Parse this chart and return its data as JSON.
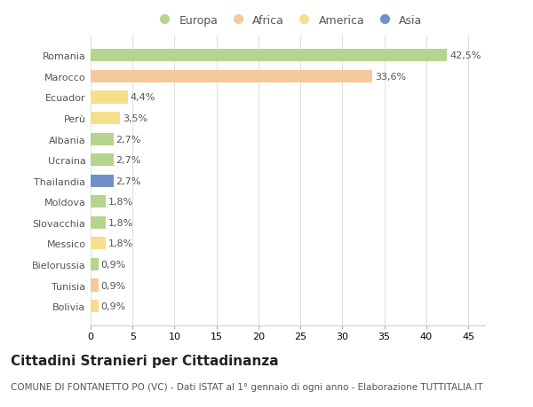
{
  "categories": [
    "Romania",
    "Marocco",
    "Ecuador",
    "Perù",
    "Albania",
    "Ucraina",
    "Thailandia",
    "Moldova",
    "Slovacchia",
    "Messico",
    "Bielorussia",
    "Tunisia",
    "Bolivia"
  ],
  "values": [
    42.5,
    33.6,
    4.4,
    3.5,
    2.7,
    2.7,
    2.7,
    1.8,
    1.8,
    1.8,
    0.9,
    0.9,
    0.9
  ],
  "labels": [
    "42,5%",
    "33,6%",
    "4,4%",
    "3,5%",
    "2,7%",
    "2,7%",
    "2,7%",
    "1,8%",
    "1,8%",
    "1,8%",
    "0,9%",
    "0,9%",
    "0,9%"
  ],
  "colors": [
    "#b5d48e",
    "#f5c99a",
    "#f5df8a",
    "#f5df8a",
    "#b5d48e",
    "#b5d48e",
    "#7090c8",
    "#b5d48e",
    "#b5d48e",
    "#f5df8a",
    "#b5d48e",
    "#f5c99a",
    "#f5df8a"
  ],
  "legend_labels": [
    "Europa",
    "Africa",
    "America",
    "Asia"
  ],
  "legend_colors": [
    "#b5d48e",
    "#f5c99a",
    "#f5df8a",
    "#7090c8"
  ],
  "xlim": [
    0,
    47
  ],
  "xticks": [
    0,
    5,
    10,
    15,
    20,
    25,
    30,
    35,
    40,
    45
  ],
  "title": "Cittadini Stranieri per Cittadinanza",
  "subtitle": "COMUNE DI FONTANETTO PO (VC) - Dati ISTAT al 1° gennaio di ogni anno - Elaborazione TUTTITALIA.IT",
  "bg_color": "#ffffff",
  "grid_color": "#e0e0e0",
  "bar_height": 0.6,
  "title_fontsize": 11,
  "subtitle_fontsize": 7.5,
  "tick_fontsize": 8,
  "label_fontsize": 8,
  "legend_fontsize": 9
}
